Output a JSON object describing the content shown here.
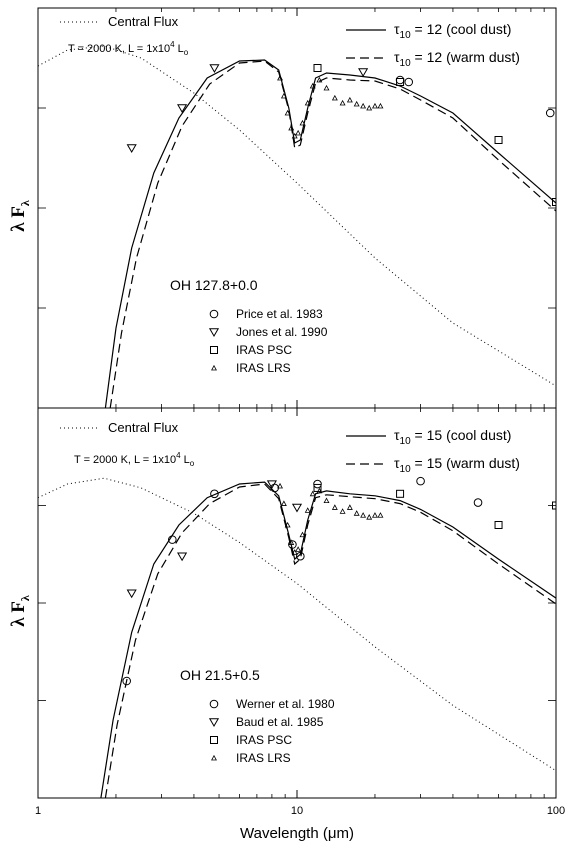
{
  "chart_data": [
    {
      "type": "line",
      "xscale": "log",
      "yscale": "log",
      "xlim": [
        1,
        100
      ],
      "ylim_decades": 4,
      "ylabel_main": "λ F",
      "ylabel_sub": "λ",
      "object_label": "OH 127.8+0.0",
      "params_text": "T = 2000 K,  L = 1x10",
      "params_exp": "4",
      "params_unit": "L",
      "params_unit_sub": "o",
      "central_flux_label": "Central Flux",
      "legend_lines": [
        {
          "prefix": "τ",
          "sub": "10",
          "text": " = 12  (cool dust)",
          "style": "solid"
        },
        {
          "prefix": "τ",
          "sub": "10",
          "text": " = 12  (warm dust)",
          "style": "dashed"
        }
      ],
      "legend_markers": [
        {
          "label": "Price et al. 1983",
          "marker": "circle"
        },
        {
          "label": "Jones et al. 1990",
          "marker": "triangle-down"
        },
        {
          "label": "IRAS PSC",
          "marker": "square"
        },
        {
          "label": "IRAS LRS",
          "marker": "triangle-small"
        }
      ],
      "series": [
        {
          "style": "dotted",
          "x": [
            1.0,
            1.3,
            1.8,
            2.5,
            4,
            6,
            10,
            20,
            40,
            100
          ],
          "y": [
            3.42,
            3.58,
            3.62,
            3.5,
            3.15,
            2.78,
            2.25,
            1.5,
            0.85,
            0.22
          ]
        },
        {
          "style": "solid",
          "x": [
            1.82,
            2.0,
            2.3,
            2.8,
            3.5,
            4.5,
            6,
            7.5,
            8.5,
            9.3,
            9.8,
            10.3,
            11,
            11.8,
            13,
            16,
            20,
            25,
            30,
            40,
            60,
            100
          ],
          "y": [
            0.0,
            0.8,
            1.6,
            2.35,
            2.9,
            3.3,
            3.47,
            3.48,
            3.38,
            3.0,
            2.65,
            2.68,
            3.0,
            3.3,
            3.35,
            3.33,
            3.3,
            3.22,
            3.12,
            2.95,
            2.55,
            2.05
          ]
        },
        {
          "style": "dashed",
          "x": [
            1.9,
            2.1,
            2.4,
            2.9,
            3.6,
            4.6,
            6,
            7.5,
            8.5,
            9.3,
            9.8,
            10.3,
            11,
            11.8,
            13,
            16,
            20,
            25,
            30,
            40,
            60,
            100
          ],
          "y": [
            0.0,
            0.75,
            1.5,
            2.25,
            2.82,
            3.24,
            3.45,
            3.47,
            3.36,
            2.98,
            2.6,
            2.63,
            2.95,
            3.25,
            3.3,
            3.28,
            3.27,
            3.19,
            3.08,
            2.9,
            2.48,
            1.97
          ]
        },
        {
          "style": "triangle-small",
          "x": [
            8.6,
            8.9,
            9.2,
            9.5,
            9.8,
            10.1,
            10.5,
            11,
            11.5,
            12.2,
            13,
            14,
            15,
            16,
            17,
            18,
            19,
            20,
            21
          ],
          "y": [
            3.3,
            3.12,
            2.95,
            2.8,
            2.72,
            2.75,
            2.85,
            3.05,
            3.22,
            3.28,
            3.2,
            3.1,
            3.05,
            3.08,
            3.04,
            3.02,
            3.0,
            3.02,
            3.02
          ]
        }
      ],
      "points": [
        {
          "marker": "circle",
          "x": 25,
          "y": 3.28
        },
        {
          "marker": "circle",
          "x": 27,
          "y": 3.26
        },
        {
          "marker": "circle",
          "x": 95,
          "y": 2.95
        },
        {
          "marker": "triangle-down",
          "x": 2.3,
          "y": 2.6
        },
        {
          "marker": "triangle-down",
          "x": 3.6,
          "y": 3.0
        },
        {
          "marker": "triangle-down",
          "x": 4.8,
          "y": 3.4
        },
        {
          "marker": "triangle-down",
          "x": 18,
          "y": 3.36
        },
        {
          "marker": "square",
          "x": 12,
          "y": 3.4
        },
        {
          "marker": "square",
          "x": 25,
          "y": 3.26
        },
        {
          "marker": "square",
          "x": 60,
          "y": 2.68
        },
        {
          "marker": "square",
          "x": 100,
          "y": 2.06
        }
      ]
    },
    {
      "type": "line",
      "xscale": "log",
      "yscale": "log",
      "xlim": [
        1,
        100
      ],
      "ylim_decades": 4,
      "xlabel": "Wavelength (μm)",
      "xticks": [
        "1",
        "10",
        "100"
      ],
      "ylabel_main": "λ F",
      "ylabel_sub": "λ",
      "object_label": "OH 21.5+0.5",
      "params_text": "T = 2000 K,  L = 1x10",
      "params_exp": "4",
      "params_unit": "L",
      "params_unit_sub": "o",
      "central_flux_label": "Central Flux",
      "legend_lines": [
        {
          "prefix": "τ",
          "sub": "10",
          "text": " = 15  (cool dust)",
          "style": "solid"
        },
        {
          "prefix": "τ",
          "sub": "10",
          "text": " = 15  (warm dust)",
          "style": "dashed"
        }
      ],
      "legend_markers": [
        {
          "label": "Werner et al. 1980",
          "marker": "circle"
        },
        {
          "label": "Baud et al. 1985",
          "marker": "triangle-down"
        },
        {
          "label": "IRAS PSC",
          "marker": "square"
        },
        {
          "label": "IRAS LRS",
          "marker": "triangle-small"
        }
      ],
      "series": [
        {
          "style": "dotted",
          "x": [
            1.0,
            1.3,
            1.8,
            2.5,
            4,
            6,
            10,
            20,
            40,
            100
          ],
          "y": [
            3.08,
            3.22,
            3.28,
            3.18,
            2.92,
            2.62,
            2.2,
            1.55,
            0.95,
            0.28
          ]
        },
        {
          "style": "solid",
          "x": [
            1.75,
            1.95,
            2.3,
            2.8,
            3.5,
            4.5,
            6,
            7.5,
            8.5,
            9.3,
            9.8,
            10.3,
            11,
            11.8,
            13,
            16,
            20,
            25,
            30,
            40,
            60,
            100
          ],
          "y": [
            0.0,
            0.8,
            1.7,
            2.4,
            2.8,
            3.08,
            3.22,
            3.24,
            3.1,
            2.7,
            2.45,
            2.5,
            2.85,
            3.12,
            3.15,
            3.12,
            3.1,
            3.05,
            2.96,
            2.78,
            2.45,
            2.05
          ]
        },
        {
          "style": "dashed",
          "x": [
            1.82,
            2.02,
            2.38,
            2.9,
            3.6,
            4.6,
            6,
            7.5,
            8.5,
            9.3,
            9.8,
            10.3,
            11,
            11.8,
            13,
            16,
            20,
            25,
            30,
            40,
            60,
            100
          ],
          "y": [
            0.0,
            0.75,
            1.62,
            2.3,
            2.72,
            3.02,
            3.19,
            3.22,
            3.07,
            2.67,
            2.4,
            2.45,
            2.8,
            3.08,
            3.11,
            3.09,
            3.07,
            3.02,
            2.93,
            2.74,
            2.4,
            1.99
          ]
        },
        {
          "style": "triangle-small",
          "x": [
            8.6,
            8.9,
            9.2,
            9.5,
            9.8,
            10.1,
            10.5,
            11,
            11.5,
            12.2,
            13,
            14,
            15,
            16,
            17,
            18,
            19,
            20,
            21
          ],
          "y": [
            3.2,
            3.02,
            2.8,
            2.62,
            2.52,
            2.55,
            2.7,
            2.95,
            3.12,
            3.15,
            3.05,
            2.98,
            2.94,
            2.98,
            2.92,
            2.9,
            2.88,
            2.9,
            2.9
          ]
        }
      ],
      "points": [
        {
          "marker": "circle",
          "x": 2.2,
          "y": 1.2
        },
        {
          "marker": "circle",
          "x": 3.3,
          "y": 2.65
        },
        {
          "marker": "circle",
          "x": 4.8,
          "y": 3.12
        },
        {
          "marker": "circle",
          "x": 8.2,
          "y": 3.18
        },
        {
          "marker": "circle",
          "x": 9.6,
          "y": 2.6
        },
        {
          "marker": "circle",
          "x": 10.3,
          "y": 2.48
        },
        {
          "marker": "circle",
          "x": 12,
          "y": 3.22
        },
        {
          "marker": "circle",
          "x": 30,
          "y": 3.25
        },
        {
          "marker": "circle",
          "x": 50,
          "y": 3.03
        },
        {
          "marker": "triangle-down",
          "x": 2.3,
          "y": 2.1
        },
        {
          "marker": "triangle-down",
          "x": 3.6,
          "y": 2.48
        },
        {
          "marker": "triangle-down",
          "x": 8.0,
          "y": 3.22
        },
        {
          "marker": "triangle-down",
          "x": 10.0,
          "y": 2.98
        },
        {
          "marker": "square",
          "x": 12,
          "y": 3.18
        },
        {
          "marker": "square",
          "x": 25,
          "y": 3.12
        },
        {
          "marker": "square",
          "x": 60,
          "y": 2.8
        },
        {
          "marker": "square",
          "x": 100,
          "y": 3.0
        }
      ]
    }
  ]
}
